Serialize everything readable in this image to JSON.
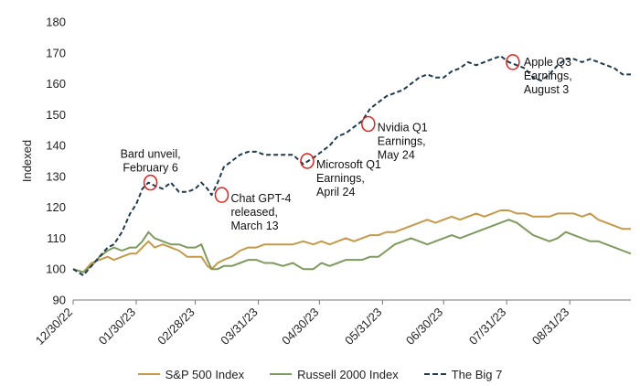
{
  "chart_data": {
    "type": "line",
    "ylabel": "Indexed",
    "ylim": [
      90,
      180
    ],
    "yticks": [
      90,
      100,
      110,
      120,
      130,
      140,
      150,
      160,
      170,
      180
    ],
    "x_ticks": [
      "12/30/22",
      "01/30/23",
      "02/28/23",
      "03/31/23",
      "04/30/23",
      "05/31/23",
      "06/30/23",
      "07/31/23",
      "08/31/23"
    ],
    "x_tick_days": [
      0,
      31,
      60,
      91,
      121,
      152,
      182,
      213,
      244
    ],
    "x_end_day": 274,
    "grid": "none",
    "legend_position": "bottom",
    "series": [
      {
        "name": "S&P 500 Index",
        "color": "#C49A4A",
        "style": "solid",
        "points": [
          [
            0,
            100
          ],
          [
            5,
            99
          ],
          [
            9,
            102
          ],
          [
            13,
            103
          ],
          [
            17,
            104
          ],
          [
            20,
            103
          ],
          [
            24,
            104
          ],
          [
            28,
            105
          ],
          [
            31,
            105
          ],
          [
            34,
            107
          ],
          [
            37,
            109
          ],
          [
            40,
            107
          ],
          [
            44,
            108
          ],
          [
            48,
            107
          ],
          [
            52,
            106
          ],
          [
            56,
            104
          ],
          [
            60,
            104
          ],
          [
            63,
            104
          ],
          [
            66,
            101
          ],
          [
            68,
            100
          ],
          [
            71,
            102
          ],
          [
            74,
            103
          ],
          [
            78,
            104
          ],
          [
            82,
            106
          ],
          [
            86,
            107
          ],
          [
            90,
            107
          ],
          [
            94,
            108
          ],
          [
            98,
            108
          ],
          [
            103,
            108
          ],
          [
            108,
            108
          ],
          [
            113,
            109
          ],
          [
            118,
            108
          ],
          [
            122,
            109
          ],
          [
            126,
            108
          ],
          [
            130,
            109
          ],
          [
            134,
            110
          ],
          [
            138,
            109
          ],
          [
            142,
            110
          ],
          [
            146,
            111
          ],
          [
            150,
            111
          ],
          [
            154,
            112
          ],
          [
            158,
            112
          ],
          [
            162,
            113
          ],
          [
            166,
            114
          ],
          [
            170,
            115
          ],
          [
            174,
            116
          ],
          [
            178,
            115
          ],
          [
            182,
            116
          ],
          [
            186,
            117
          ],
          [
            190,
            116
          ],
          [
            194,
            117
          ],
          [
            198,
            118
          ],
          [
            202,
            117
          ],
          [
            206,
            118
          ],
          [
            210,
            119
          ],
          [
            214,
            119
          ],
          [
            218,
            118
          ],
          [
            222,
            118
          ],
          [
            226,
            117
          ],
          [
            230,
            117
          ],
          [
            234,
            117
          ],
          [
            238,
            118
          ],
          [
            242,
            118
          ],
          [
            246,
            118
          ],
          [
            250,
            117
          ],
          [
            254,
            118
          ],
          [
            258,
            116
          ],
          [
            262,
            115
          ],
          [
            266,
            114
          ],
          [
            270,
            113
          ],
          [
            274,
            113
          ]
        ]
      },
      {
        "name": "Russell 2000 Index",
        "color": "#7E9A5E",
        "style": "solid",
        "points": [
          [
            0,
            100
          ],
          [
            5,
            99
          ],
          [
            9,
            101
          ],
          [
            13,
            104
          ],
          [
            17,
            106
          ],
          [
            20,
            107
          ],
          [
            24,
            106
          ],
          [
            28,
            107
          ],
          [
            31,
            107
          ],
          [
            34,
            109
          ],
          [
            37,
            112
          ],
          [
            40,
            110
          ],
          [
            44,
            109
          ],
          [
            48,
            108
          ],
          [
            52,
            108
          ],
          [
            56,
            107
          ],
          [
            60,
            107
          ],
          [
            63,
            108
          ],
          [
            66,
            103
          ],
          [
            68,
            100
          ],
          [
            71,
            100
          ],
          [
            74,
            101
          ],
          [
            78,
            101
          ],
          [
            82,
            102
          ],
          [
            86,
            103
          ],
          [
            90,
            103
          ],
          [
            94,
            102
          ],
          [
            98,
            102
          ],
          [
            103,
            101
          ],
          [
            108,
            102
          ],
          [
            113,
            100
          ],
          [
            118,
            100
          ],
          [
            122,
            102
          ],
          [
            126,
            101
          ],
          [
            130,
            102
          ],
          [
            134,
            103
          ],
          [
            138,
            103
          ],
          [
            142,
            103
          ],
          [
            146,
            104
          ],
          [
            150,
            104
          ],
          [
            154,
            106
          ],
          [
            158,
            108
          ],
          [
            162,
            109
          ],
          [
            166,
            110
          ],
          [
            170,
            109
          ],
          [
            174,
            108
          ],
          [
            178,
            109
          ],
          [
            182,
            110
          ],
          [
            186,
            111
          ],
          [
            190,
            110
          ],
          [
            194,
            111
          ],
          [
            198,
            112
          ],
          [
            202,
            113
          ],
          [
            206,
            114
          ],
          [
            210,
            115
          ],
          [
            214,
            116
          ],
          [
            218,
            115
          ],
          [
            222,
            113
          ],
          [
            226,
            111
          ],
          [
            230,
            110
          ],
          [
            234,
            109
          ],
          [
            238,
            110
          ],
          [
            242,
            112
          ],
          [
            246,
            111
          ],
          [
            250,
            110
          ],
          [
            254,
            109
          ],
          [
            258,
            109
          ],
          [
            262,
            108
          ],
          [
            266,
            107
          ],
          [
            270,
            106
          ],
          [
            274,
            105
          ]
        ]
      },
      {
        "name": "The Big 7",
        "color": "#1F3A4F",
        "style": "dashed",
        "points": [
          [
            0,
            100
          ],
          [
            5,
            98
          ],
          [
            9,
            101
          ],
          [
            13,
            104
          ],
          [
            17,
            107
          ],
          [
            20,
            108
          ],
          [
            24,
            112
          ],
          [
            28,
            118
          ],
          [
            31,
            121
          ],
          [
            34,
            126
          ],
          [
            37,
            128
          ],
          [
            40,
            127
          ],
          [
            44,
            126
          ],
          [
            48,
            128
          ],
          [
            52,
            125
          ],
          [
            56,
            125
          ],
          [
            60,
            126
          ],
          [
            63,
            128
          ],
          [
            66,
            126
          ],
          [
            68,
            124
          ],
          [
            71,
            128
          ],
          [
            74,
            133
          ],
          [
            78,
            135
          ],
          [
            82,
            137
          ],
          [
            86,
            138
          ],
          [
            90,
            138
          ],
          [
            94,
            137
          ],
          [
            98,
            137
          ],
          [
            103,
            137
          ],
          [
            108,
            137
          ],
          [
            113,
            134
          ],
          [
            118,
            136
          ],
          [
            122,
            138
          ],
          [
            126,
            140
          ],
          [
            130,
            143
          ],
          [
            134,
            144
          ],
          [
            138,
            146
          ],
          [
            142,
            148
          ],
          [
            146,
            152
          ],
          [
            150,
            154
          ],
          [
            154,
            156
          ],
          [
            158,
            157
          ],
          [
            162,
            158
          ],
          [
            166,
            160
          ],
          [
            170,
            162
          ],
          [
            174,
            163
          ],
          [
            178,
            162
          ],
          [
            182,
            162
          ],
          [
            186,
            164
          ],
          [
            190,
            165
          ],
          [
            194,
            167
          ],
          [
            198,
            166
          ],
          [
            202,
            167
          ],
          [
            206,
            168
          ],
          [
            210,
            169
          ],
          [
            214,
            167
          ],
          [
            218,
            166
          ],
          [
            222,
            165
          ],
          [
            226,
            162
          ],
          [
            230,
            161
          ],
          [
            234,
            163
          ],
          [
            238,
            166
          ],
          [
            242,
            168
          ],
          [
            246,
            168
          ],
          [
            250,
            167
          ],
          [
            254,
            168
          ],
          [
            258,
            167
          ],
          [
            262,
            166
          ],
          [
            266,
            165
          ],
          [
            270,
            163
          ],
          [
            274,
            163
          ]
        ]
      }
    ],
    "annotations": [
      {
        "lines": [
          "Bard unveil,",
          "February 6"
        ],
        "day": 38,
        "value": 128,
        "text_anchor": "middle",
        "text_pos": "above"
      },
      {
        "lines": [
          "Chat GPT-4",
          "released,",
          "March 13"
        ],
        "day": 73,
        "value": 124,
        "text_anchor": "start",
        "text_pos": "right"
      },
      {
        "lines": [
          "Microsoft Q1",
          "Earnings,",
          "April 24"
        ],
        "day": 115,
        "value": 135,
        "text_anchor": "start",
        "text_pos": "right"
      },
      {
        "lines": [
          "Nvidia Q1",
          "Earnings,",
          "May 24"
        ],
        "day": 145,
        "value": 147,
        "text_anchor": "start",
        "text_pos": "right"
      },
      {
        "lines": [
          "Apple Q3",
          "Earnings,",
          "August 3"
        ],
        "day": 216,
        "value": 167,
        "text_anchor": "start",
        "text_pos": "below-right"
      }
    ]
  }
}
